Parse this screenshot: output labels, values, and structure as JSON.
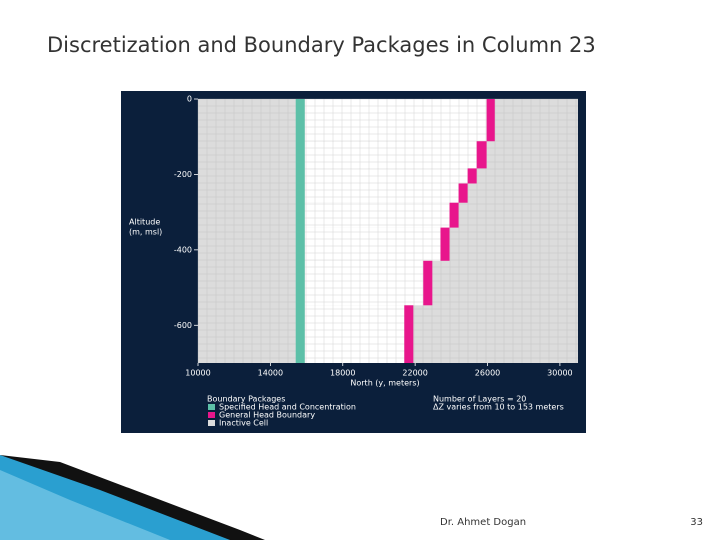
{
  "slide": {
    "title": "Discretization and Boundary Packages in Column 23",
    "footer": "Dr. Ahmet Dogan",
    "page_number": "33"
  },
  "chart_data": {
    "type": "boundary-grid",
    "x_label": "North (y, meters)",
    "y_label": [
      "Altitude",
      "(m, msl)"
    ],
    "xlim": [
      10000,
      31000
    ],
    "xticks": [
      10000,
      14000,
      18000,
      22000,
      26000,
      30000
    ],
    "ylim": [
      -700,
      0
    ],
    "yticks": [
      0,
      -200,
      -400,
      -600
    ],
    "legend_title": "Boundary Packages",
    "notes": [
      "Number of Layers = 20",
      "ΔZ varies from 10 to 153 meters"
    ],
    "series": [
      {
        "name": "Specified Head and Concentration",
        "color": "#5cc0a8",
        "cells": [
          {
            "north": [
              15400,
              15900
            ],
            "altitude": [
              0,
              -700
            ]
          }
        ]
      },
      {
        "name": "General Head Boundary",
        "color": "#e8168c",
        "cells": [
          {
            "north": [
              25950,
              26400
            ],
            "altitude": [
              0,
              -112
            ]
          },
          {
            "north": [
              25400,
              25950
            ],
            "altitude": [
              -112,
              -184
            ]
          },
          {
            "north": [
              24900,
              25400
            ],
            "altitude": [
              -184,
              -224
            ]
          },
          {
            "north": [
              24400,
              24900
            ],
            "altitude": [
              -224,
              -275
            ]
          },
          {
            "north": [
              23900,
              24400
            ],
            "altitude": [
              -275,
              -341
            ]
          },
          {
            "north": [
              23400,
              23900
            ],
            "altitude": [
              -341,
              -429
            ]
          },
          {
            "north": [
              22450,
              22950
            ],
            "altitude": [
              -429,
              -547
            ]
          },
          {
            "north": [
              21400,
              21900
            ],
            "altitude": [
              -547,
              -700
            ]
          }
        ]
      },
      {
        "name": "Inactive Cell",
        "color": "#dcdcdc"
      }
    ]
  }
}
